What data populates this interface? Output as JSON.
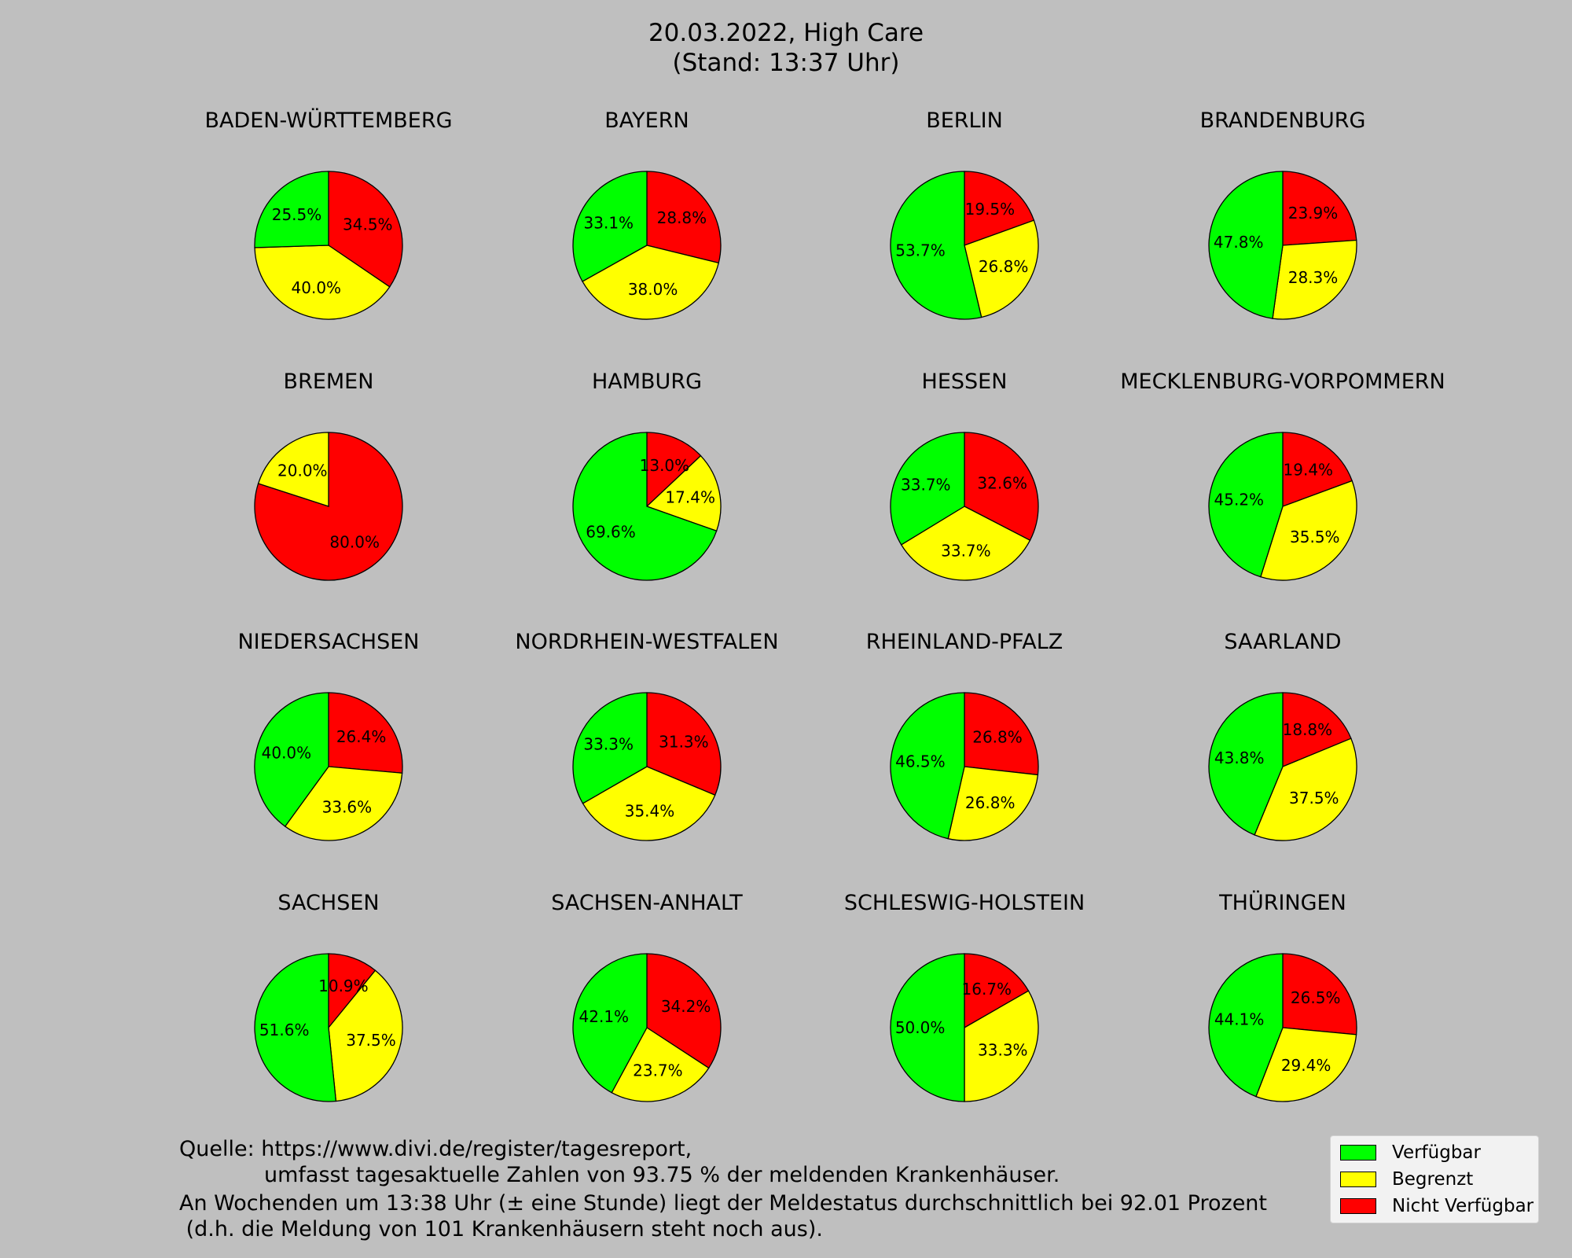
{
  "title": {
    "line1": "20.03.2022, High Care",
    "line2": "(Stand: 13:37 Uhr)"
  },
  "colors": {
    "verfuegbar": "#00ff00",
    "begrenzt": "#ffff00",
    "nicht_verfuegbar": "#ff0000",
    "background": "#bfbfbf"
  },
  "legend": [
    {
      "label": "Verfügbar",
      "color": "#00ff00"
    },
    {
      "label": "Begrenzt",
      "color": "#ffff00"
    },
    {
      "label": "Nicht Verfügbar",
      "color": "#ff0000"
    }
  ],
  "notes": {
    "line1": "Quelle: https://www.divi.de/register/tagesreport,",
    "line2": "umfasst tagesaktuelle Zahlen von 93.75 % der meldenden Krankenhäuser.",
    "line3": "An Wochenden um 13:38 Uhr (± eine Stunde) liegt der Meldestatus durchschnittlich bei 92.01 Prozent",
    "line4": " (d.h. die Meldung von 101 Krankenhäusern steht noch aus)."
  },
  "chart_data": {
    "type": "pie",
    "series_order": [
      "Nicht Verfügbar",
      "Begrenzt",
      "Verfügbar"
    ],
    "pies": [
      {
        "title": "BADEN-WÜRTTEMBERG",
        "values": [
          34.5,
          40.0,
          25.5
        ],
        "labels": [
          "34.5%",
          "40.0%",
          "25.5%"
        ]
      },
      {
        "title": "BAYERN",
        "values": [
          28.8,
          38.0,
          33.1
        ],
        "labels": [
          "28.8%",
          "38.0%",
          "33.1%"
        ]
      },
      {
        "title": "BERLIN",
        "values": [
          19.5,
          26.8,
          53.7
        ],
        "labels": [
          "19.5%",
          "26.8%",
          "53.7%"
        ]
      },
      {
        "title": "BRANDENBURG",
        "values": [
          23.9,
          28.3,
          47.8
        ],
        "labels": [
          "23.9%",
          "28.3%",
          "47.8%"
        ]
      },
      {
        "title": "BREMEN",
        "values": [
          80.0,
          20.0,
          0
        ],
        "labels": [
          "80.0%",
          "20.0%",
          ""
        ]
      },
      {
        "title": "HAMBURG",
        "values": [
          13.0,
          17.4,
          69.6
        ],
        "labels": [
          "13.0%",
          "17.4%",
          "69.6%"
        ]
      },
      {
        "title": "HESSEN",
        "values": [
          32.6,
          33.7,
          33.7
        ],
        "labels": [
          "32.6%",
          "33.7%",
          "33.7%"
        ]
      },
      {
        "title": "MECKLENBURG-VORPOMMERN",
        "values": [
          19.4,
          35.5,
          45.2
        ],
        "labels": [
          "19.4%",
          "35.5%",
          "45.2%"
        ]
      },
      {
        "title": "NIEDERSACHSEN",
        "values": [
          26.4,
          33.6,
          40.0
        ],
        "labels": [
          "26.4%",
          "33.6%",
          "40.0%"
        ]
      },
      {
        "title": "NORDRHEIN-WESTFALEN",
        "values": [
          31.3,
          35.4,
          33.3
        ],
        "labels": [
          "31.3%",
          "35.4%",
          "33.3%"
        ]
      },
      {
        "title": "RHEINLAND-PFALZ",
        "values": [
          26.8,
          26.8,
          46.5
        ],
        "labels": [
          "26.8%",
          "26.8%",
          "46.5%"
        ]
      },
      {
        "title": "SAARLAND",
        "values": [
          18.8,
          37.5,
          43.8
        ],
        "labels": [
          "18.8%",
          "37.5%",
          "43.8%"
        ]
      },
      {
        "title": "SACHSEN",
        "values": [
          10.9,
          37.5,
          51.6
        ],
        "labels": [
          "10.9%",
          "37.5%",
          "51.6%"
        ]
      },
      {
        "title": "SACHSEN-ANHALT",
        "values": [
          34.2,
          23.7,
          42.1
        ],
        "labels": [
          "34.2%",
          "23.7%",
          "42.1%"
        ]
      },
      {
        "title": "SCHLESWIG-HOLSTEIN",
        "values": [
          16.7,
          33.3,
          50.0
        ],
        "labels": [
          "16.7%",
          "33.3%",
          "50.0%"
        ]
      },
      {
        "title": "THÜRINGEN",
        "values": [
          26.5,
          29.4,
          44.1
        ],
        "labels": [
          "26.5%",
          "29.4%",
          "44.1%"
        ]
      }
    ]
  }
}
